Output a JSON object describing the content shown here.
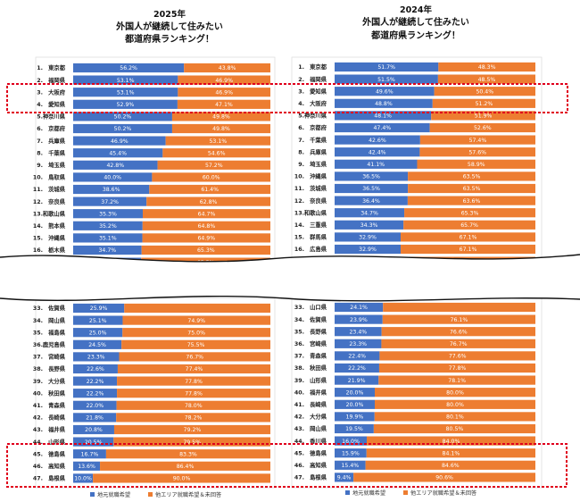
{
  "chart_data": [
    {
      "type": "bar",
      "stacked": "horizontal-100",
      "year": "2025年",
      "title": [
        "外国人が継続して住みたい",
        "都道府県ランキング！"
      ],
      "legend": [
        "地元就職希望",
        "他エリア就職希望＆未回答"
      ],
      "colors": {
        "series1": "#4472C4",
        "series2": "#ED7D31"
      },
      "top": [
        {
          "rank": "1.",
          "pref": "東京都",
          "a": "56.2%",
          "b": "43.8%",
          "v": 56.2
        },
        {
          "rank": "2.",
          "pref": "福岡県",
          "a": "53.1%",
          "b": "46.9%",
          "v": 53.1
        },
        {
          "rank": "3.",
          "pref": "大阪府",
          "a": "53.1%",
          "b": "46.9%",
          "v": 53.1
        },
        {
          "rank": "4.",
          "pref": "愛知県",
          "a": "52.9%",
          "b": "47.1%",
          "v": 52.9
        },
        {
          "rank": "5.",
          "pref": "神奈川県",
          "a": "50.2%",
          "b": "49.8%",
          "v": 50.2
        },
        {
          "rank": "6.",
          "pref": "京都府",
          "a": "50.2%",
          "b": "49.8%",
          "v": 50.2
        },
        {
          "rank": "7.",
          "pref": "兵庫県",
          "a": "46.9%",
          "b": "53.1%",
          "v": 46.9
        },
        {
          "rank": "8.",
          "pref": "千葉県",
          "a": "45.4%",
          "b": "54.6%",
          "v": 45.4
        },
        {
          "rank": "9.",
          "pref": "埼玉県",
          "a": "42.8%",
          "b": "57.2%",
          "v": 42.8
        },
        {
          "rank": "10.",
          "pref": "鳥取県",
          "a": "40.0%",
          "b": "60.0%",
          "v": 40.0
        },
        {
          "rank": "11.",
          "pref": "茨城県",
          "a": "38.6%",
          "b": "61.4%",
          "v": 38.6
        },
        {
          "rank": "12.",
          "pref": "奈良県",
          "a": "37.2%",
          "b": "62.8%",
          "v": 37.2
        },
        {
          "rank": "13.",
          "pref": "和歌山県",
          "a": "35.3%",
          "b": "64.7%",
          "v": 35.3
        },
        {
          "rank": "14.",
          "pref": "熊本県",
          "a": "35.2%",
          "b": "64.8%",
          "v": 35.2
        },
        {
          "rank": "15.",
          "pref": "沖縄県",
          "a": "35.1%",
          "b": "64.9%",
          "v": 35.1
        },
        {
          "rank": "16.",
          "pref": "栃木県",
          "a": "34.7%",
          "b": "65.3%",
          "v": 34.7
        },
        {
          "rank": "",
          "pref": "",
          "a": "",
          "b": "65.5%",
          "v": 34.5
        }
      ],
      "bottom": [
        {
          "rank": "33.",
          "pref": "佐賀県",
          "a": "25.9%",
          "b": "",
          "v": 25.9
        },
        {
          "rank": "34.",
          "pref": "岡山県",
          "a": "25.1%",
          "b": "74.9%",
          "v": 25.1
        },
        {
          "rank": "35.",
          "pref": "福島県",
          "a": "25.0%",
          "b": "75.0%",
          "v": 25.0
        },
        {
          "rank": "36.",
          "pref": "鹿児島県",
          "a": "24.5%",
          "b": "75.5%",
          "v": 24.5
        },
        {
          "rank": "37.",
          "pref": "宮崎県",
          "a": "23.3%",
          "b": "76.7%",
          "v": 23.3
        },
        {
          "rank": "38.",
          "pref": "長野県",
          "a": "22.6%",
          "b": "77.4%",
          "v": 22.6
        },
        {
          "rank": "39.",
          "pref": "大分県",
          "a": "22.2%",
          "b": "77.8%",
          "v": 22.2
        },
        {
          "rank": "40.",
          "pref": "秋田県",
          "a": "22.2%",
          "b": "77.8%",
          "v": 22.2
        },
        {
          "rank": "41.",
          "pref": "青森県",
          "a": "22.0%",
          "b": "78.0%",
          "v": 22.0
        },
        {
          "rank": "42.",
          "pref": "長崎県",
          "a": "21.8%",
          "b": "78.2%",
          "v": 21.8
        },
        {
          "rank": "43.",
          "pref": "福井県",
          "a": "20.8%",
          "b": "79.2%",
          "v": 20.8
        },
        {
          "rank": "44.",
          "pref": "山形県",
          "a": "20.5%",
          "b": "79.5%",
          "v": 20.5
        },
        {
          "rank": "45.",
          "pref": "徳島県",
          "a": "16.7%",
          "b": "83.3%",
          "v": 16.7
        },
        {
          "rank": "46.",
          "pref": "高知県",
          "a": "13.6%",
          "b": "86.4%",
          "v": 13.6
        },
        {
          "rank": "47.",
          "pref": "島根県",
          "a": "10.0%",
          "b": "90.0%",
          "v": 10.0
        }
      ]
    },
    {
      "type": "bar",
      "stacked": "horizontal-100",
      "year": "2024年",
      "title": [
        "外国人が継続して住みたい",
        "都道府県ランキング！"
      ],
      "legend": [
        "地元就職希望",
        "他エリア就職希望＆未回答"
      ],
      "colors": {
        "series1": "#4472C4",
        "series2": "#ED7D31"
      },
      "top": [
        {
          "rank": "1.",
          "pref": "東京都",
          "a": "51.7%",
          "b": "48.3%",
          "v": 51.7
        },
        {
          "rank": "2.",
          "pref": "福岡県",
          "a": "51.5%",
          "b": "48.5%",
          "v": 51.5
        },
        {
          "rank": "3.",
          "pref": "愛知県",
          "a": "49.6%",
          "b": "50.4%",
          "v": 49.6
        },
        {
          "rank": "4.",
          "pref": "大阪府",
          "a": "48.8%",
          "b": "51.2%",
          "v": 48.8
        },
        {
          "rank": "5.",
          "pref": "神奈川県",
          "a": "48.1%",
          "b": "51.9%",
          "v": 48.1
        },
        {
          "rank": "6.",
          "pref": "京都府",
          "a": "47.4%",
          "b": "52.6%",
          "v": 47.4
        },
        {
          "rank": "7.",
          "pref": "千葉県",
          "a": "42.6%",
          "b": "57.4%",
          "v": 42.6
        },
        {
          "rank": "8.",
          "pref": "兵庫県",
          "a": "42.4%",
          "b": "57.6%",
          "v": 42.4
        },
        {
          "rank": "9.",
          "pref": "埼玉県",
          "a": "41.1%",
          "b": "58.9%",
          "v": 41.1
        },
        {
          "rank": "10.",
          "pref": "沖縄県",
          "a": "36.5%",
          "b": "63.5%",
          "v": 36.5
        },
        {
          "rank": "11.",
          "pref": "茨城県",
          "a": "36.5%",
          "b": "63.5%",
          "v": 36.5
        },
        {
          "rank": "12.",
          "pref": "奈良県",
          "a": "36.4%",
          "b": "63.6%",
          "v": 36.4
        },
        {
          "rank": "13.",
          "pref": "和歌山県",
          "a": "34.7%",
          "b": "65.3%",
          "v": 34.7
        },
        {
          "rank": "14.",
          "pref": "三重県",
          "a": "34.3%",
          "b": "65.7%",
          "v": 34.3
        },
        {
          "rank": "15.",
          "pref": "群馬県",
          "a": "32.9%",
          "b": "67.1%",
          "v": 32.9
        },
        {
          "rank": "16.",
          "pref": "広島県",
          "a": "32.9%",
          "b": "67.1%",
          "v": 32.9
        },
        {
          "rank": "",
          "pref": "",
          "a": "",
          "b": "",
          "v": 32.4
        }
      ],
      "bottom": [
        {
          "rank": "33.",
          "pref": "山口県",
          "a": "24.1%",
          "b": "",
          "v": 24.1
        },
        {
          "rank": "34.",
          "pref": "佐賀県",
          "a": "23.9%",
          "b": "76.1%",
          "v": 23.9
        },
        {
          "rank": "35.",
          "pref": "長野県",
          "a": "23.4%",
          "b": "76.6%",
          "v": 23.4
        },
        {
          "rank": "36.",
          "pref": "宮崎県",
          "a": "23.3%",
          "b": "76.7%",
          "v": 23.3
        },
        {
          "rank": "37.",
          "pref": "青森県",
          "a": "22.4%",
          "b": "77.6%",
          "v": 22.4
        },
        {
          "rank": "38.",
          "pref": "秋田県",
          "a": "22.2%",
          "b": "77.8%",
          "v": 22.2
        },
        {
          "rank": "39.",
          "pref": "山形県",
          "a": "21.9%",
          "b": "78.1%",
          "v": 21.9
        },
        {
          "rank": "40.",
          "pref": "福井県",
          "a": "20.0%",
          "b": "80.0%",
          "v": 20.0
        },
        {
          "rank": "41.",
          "pref": "長崎県",
          "a": "20.0%",
          "b": "80.0%",
          "v": 20.0
        },
        {
          "rank": "42.",
          "pref": "大分県",
          "a": "19.9%",
          "b": "80.1%",
          "v": 19.9
        },
        {
          "rank": "43.",
          "pref": "岡山県",
          "a": "19.5%",
          "b": "80.5%",
          "v": 19.5
        },
        {
          "rank": "44.",
          "pref": "香川県",
          "a": "16.0%",
          "b": "84.0%",
          "v": 16.0
        },
        {
          "rank": "45.",
          "pref": "徳島県",
          "a": "15.9%",
          "b": "84.1%",
          "v": 15.9
        },
        {
          "rank": "46.",
          "pref": "高知県",
          "a": "15.4%",
          "b": "84.6%",
          "v": 15.4
        },
        {
          "rank": "47.",
          "pref": "島根県",
          "a": "9.4%",
          "b": "90.6%",
          "v": 9.4
        }
      ]
    }
  ]
}
